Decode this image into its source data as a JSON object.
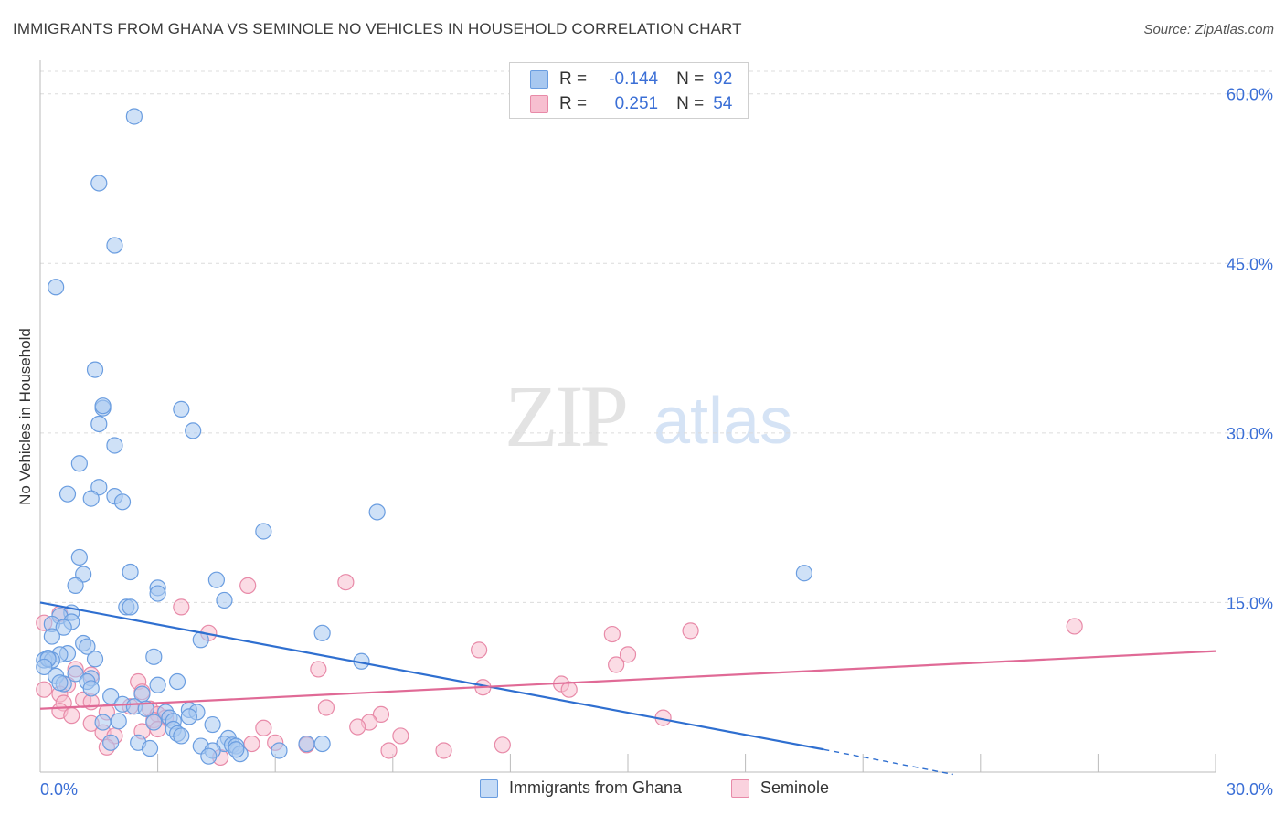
{
  "title": "IMMIGRANTS FROM GHANA VS SEMINOLE NO VEHICLES IN HOUSEHOLD CORRELATION CHART",
  "source": "Source: ZipAtlas.com",
  "watermark": {
    "zip": "ZIP",
    "atlas": "atlas"
  },
  "legend_top": {
    "rows": [
      {
        "r_label": "R =",
        "r_value": "-0.144",
        "n_label": "N =",
        "n_value": "92",
        "color": "#a8c8f0",
        "border": "#6a9de0"
      },
      {
        "r_label": "R =",
        "r_value": "0.251",
        "n_label": "N =",
        "n_value": "54",
        "color": "#f7bfd0",
        "border": "#e88aa8"
      }
    ]
  },
  "legend_bottom": [
    {
      "label": "Immigrants from Ghana",
      "color": "#c5dbf6",
      "border": "#6a9de0"
    },
    {
      "label": "Seminole",
      "color": "#fad2de",
      "border": "#e88aa8"
    }
  ],
  "chart_data": {
    "type": "scatter",
    "title": "IMMIGRANTS FROM GHANA VS SEMINOLE NO VEHICLES IN HOUSEHOLD CORRELATION CHART",
    "xlabel": "",
    "ylabel": "No Vehicles in Household",
    "xlim": [
      0,
      30
    ],
    "ylim": [
      0,
      62
    ],
    "x_tick_labels": [
      "0.0%",
      "30.0%"
    ],
    "y_tick_labels": [
      "15.0%",
      "30.0%",
      "45.0%",
      "60.0%"
    ],
    "y_tick_values": [
      15,
      30,
      45,
      60
    ],
    "grid": true,
    "legend_placement": "top-center",
    "colors": {
      "ghana": "#6a9de0",
      "ghana_fill": "#a8c8f0",
      "seminole": "#e88aa8",
      "seminole_fill": "#f7bfd0",
      "ghana_line": "#2f6fd0",
      "seminole_line": "#e06a96",
      "tick_label": "#3b6fd6"
    },
    "series": [
      {
        "name": "Immigrants from Ghana",
        "points": [
          [
            2.4,
            58.0
          ],
          [
            1.5,
            52.1
          ],
          [
            1.9,
            46.6
          ],
          [
            0.4,
            42.9
          ],
          [
            1.4,
            35.6
          ],
          [
            1.6,
            32.2
          ],
          [
            3.6,
            32.1
          ],
          [
            1.6,
            32.4
          ],
          [
            1.5,
            30.8
          ],
          [
            3.9,
            30.2
          ],
          [
            1.9,
            28.9
          ],
          [
            1.0,
            27.3
          ],
          [
            0.7,
            24.6
          ],
          [
            1.5,
            25.2
          ],
          [
            1.3,
            24.2
          ],
          [
            1.9,
            24.4
          ],
          [
            2.1,
            23.9
          ],
          [
            8.6,
            23.0
          ],
          [
            5.7,
            21.3
          ],
          [
            1.0,
            19.0
          ],
          [
            2.3,
            17.7
          ],
          [
            1.1,
            17.5
          ],
          [
            19.5,
            17.6
          ],
          [
            4.5,
            17.0
          ],
          [
            0.9,
            16.5
          ],
          [
            3.0,
            16.3
          ],
          [
            3.0,
            15.8
          ],
          [
            4.7,
            15.2
          ],
          [
            2.2,
            14.6
          ],
          [
            2.3,
            14.6
          ],
          [
            0.8,
            14.1
          ],
          [
            0.5,
            13.8
          ],
          [
            0.3,
            13.1
          ],
          [
            0.8,
            13.3
          ],
          [
            0.6,
            12.8
          ],
          [
            0.3,
            12.0
          ],
          [
            7.2,
            12.3
          ],
          [
            4.1,
            11.7
          ],
          [
            1.1,
            11.4
          ],
          [
            1.2,
            11.1
          ],
          [
            0.7,
            10.5
          ],
          [
            0.5,
            10.4
          ],
          [
            0.2,
            10.1
          ],
          [
            0.1,
            9.9
          ],
          [
            0.3,
            9.9
          ],
          [
            0.2,
            10.0
          ],
          [
            1.4,
            10.0
          ],
          [
            2.9,
            10.2
          ],
          [
            8.2,
            9.8
          ],
          [
            0.1,
            9.3
          ],
          [
            0.4,
            8.5
          ],
          [
            1.3,
            8.3
          ],
          [
            0.9,
            8.7
          ],
          [
            1.2,
            8.0
          ],
          [
            0.6,
            7.8
          ],
          [
            0.5,
            7.9
          ],
          [
            3.5,
            8.0
          ],
          [
            3.0,
            7.7
          ],
          [
            1.3,
            7.4
          ],
          [
            1.8,
            6.7
          ],
          [
            2.6,
            6.9
          ],
          [
            2.1,
            6.0
          ],
          [
            2.4,
            5.8
          ],
          [
            2.7,
            5.6
          ],
          [
            3.8,
            5.5
          ],
          [
            4.0,
            5.3
          ],
          [
            3.2,
            5.3
          ],
          [
            3.8,
            4.9
          ],
          [
            3.3,
            4.8
          ],
          [
            3.4,
            4.5
          ],
          [
            2.0,
            4.5
          ],
          [
            1.6,
            4.4
          ],
          [
            2.9,
            4.4
          ],
          [
            4.4,
            4.2
          ],
          [
            3.4,
            3.8
          ],
          [
            3.5,
            3.4
          ],
          [
            3.6,
            3.2
          ],
          [
            4.8,
            3.0
          ],
          [
            2.5,
            2.6
          ],
          [
            4.7,
            2.5
          ],
          [
            4.9,
            2.4
          ],
          [
            5.0,
            2.3
          ],
          [
            4.1,
            2.3
          ],
          [
            6.8,
            2.5
          ],
          [
            7.2,
            2.5
          ],
          [
            2.8,
            2.1
          ],
          [
            4.4,
            1.9
          ],
          [
            6.1,
            1.9
          ],
          [
            5.1,
            1.6
          ],
          [
            4.3,
            1.4
          ],
          [
            1.8,
            2.6
          ],
          [
            5.0,
            2.0
          ]
        ]
      },
      {
        "name": "Seminole",
        "points": [
          [
            0.1,
            13.2
          ],
          [
            0.5,
            14.0
          ],
          [
            5.3,
            16.5
          ],
          [
            7.8,
            16.8
          ],
          [
            3.6,
            14.6
          ],
          [
            4.3,
            12.3
          ],
          [
            14.6,
            12.2
          ],
          [
            16.6,
            12.5
          ],
          [
            26.4,
            12.9
          ],
          [
            11.2,
            10.8
          ],
          [
            15.0,
            10.4
          ],
          [
            14.7,
            9.5
          ],
          [
            7.1,
            9.1
          ],
          [
            0.9,
            9.1
          ],
          [
            1.3,
            8.6
          ],
          [
            2.5,
            8.0
          ],
          [
            0.7,
            7.7
          ],
          [
            13.3,
            7.8
          ],
          [
            13.5,
            7.3
          ],
          [
            11.3,
            7.5
          ],
          [
            0.1,
            7.3
          ],
          [
            2.6,
            7.1
          ],
          [
            0.5,
            6.9
          ],
          [
            1.1,
            6.4
          ],
          [
            0.6,
            6.1
          ],
          [
            1.3,
            6.2
          ],
          [
            2.3,
            5.8
          ],
          [
            7.3,
            5.7
          ],
          [
            2.8,
            5.6
          ],
          [
            0.5,
            5.4
          ],
          [
            1.7,
            5.3
          ],
          [
            3.0,
            5.1
          ],
          [
            0.8,
            5.0
          ],
          [
            3.2,
            4.8
          ],
          [
            8.7,
            5.1
          ],
          [
            2.9,
            4.6
          ],
          [
            15.9,
            4.8
          ],
          [
            8.4,
            4.4
          ],
          [
            1.3,
            4.3
          ],
          [
            8.1,
            4.0
          ],
          [
            5.7,
            3.9
          ],
          [
            3.0,
            3.8
          ],
          [
            2.6,
            3.6
          ],
          [
            1.6,
            3.5
          ],
          [
            1.9,
            3.2
          ],
          [
            9.2,
            3.2
          ],
          [
            6.0,
            2.6
          ],
          [
            5.4,
            2.5
          ],
          [
            6.8,
            2.4
          ],
          [
            11.8,
            2.4
          ],
          [
            1.7,
            2.2
          ],
          [
            8.9,
            1.9
          ],
          [
            10.3,
            1.9
          ],
          [
            4.6,
            1.3
          ]
        ]
      }
    ],
    "trendlines": [
      {
        "series": "Immigrants from Ghana",
        "x0": 0,
        "y0": 15.0,
        "x1": 20.0,
        "y1": 2.0,
        "dashed_to_x": 23.3,
        "dashed_to_y": -0.2
      },
      {
        "series": "Seminole",
        "x0": 0,
        "y0": 5.6,
        "x1": 30.0,
        "y1": 10.7
      }
    ]
  }
}
